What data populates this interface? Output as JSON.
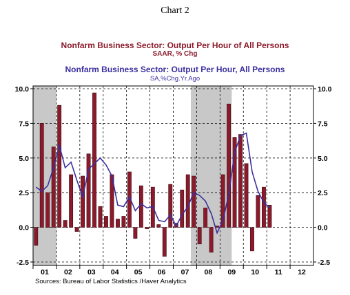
{
  "chart_data": {
    "type": "bar",
    "title": "Chart 2",
    "series": [
      {
        "name": "Nonfarm Business Sector: Output Per Hour of All Persons",
        "units": "SAAR, % Chg",
        "type": "bar",
        "color": "#8b1a2b",
        "values": [
          -1.3,
          7.5,
          2.5,
          5.8,
          8.8,
          0.5,
          3.8,
          -0.3,
          3.7,
          5.3,
          9.7,
          1.5,
          0.8,
          3.8,
          0.6,
          0.8,
          4.0,
          -0.8,
          3.0,
          -0.1,
          2.9,
          0.2,
          -2.1,
          3.1,
          0.3,
          2.7,
          3.8,
          3.7,
          -1.2,
          1.4,
          -1.8,
          0.1,
          3.8,
          8.9,
          6.5,
          6.7,
          4.6,
          -1.7,
          2.3,
          2.9,
          1.6
        ]
      },
      {
        "name": "Nonfarm Business Sector: Output Per Hour, All Persons",
        "units": "SA,%Chg.Yr.Ago",
        "type": "line",
        "color": "#3a2fa0",
        "values": [
          2.9,
          2.6,
          3.0,
          4.3,
          5.9,
          4.3,
          4.7,
          3.4,
          2.2,
          4.2,
          4.6,
          5.0,
          4.5,
          3.7,
          1.6,
          1.5,
          2.2,
          1.2,
          1.7,
          1.4,
          1.5,
          0.5,
          0.4,
          0.9,
          0.1,
          0.9,
          1.5,
          2.5,
          2.3,
          1.9,
          1.0,
          -0.4,
          0.5,
          2.4,
          5.4,
          6.6,
          6.8,
          4.0,
          2.6,
          1.8,
          1.4
        ]
      }
    ],
    "quarters_start": "2001 Q1",
    "x_tick_labels": [
      "01",
      "02",
      "03",
      "04",
      "05",
      "06",
      "07",
      "08",
      "09",
      "10",
      "11",
      "12"
    ],
    "y_tick_labels": [
      "10.0",
      "7.5",
      "5.0",
      "2.5",
      "0.0",
      "-2.5"
    ],
    "ylim": [
      -2.5,
      10.0
    ],
    "recession_shading": [
      [
        "2001 Q1",
        "2001 Q4"
      ],
      [
        "2007 Q4",
        "2009 Q2"
      ]
    ],
    "grid": "dashed horizontal and vertical",
    "source": "Sources:  Bureau of Labor Statistics /Haver Analytics"
  }
}
